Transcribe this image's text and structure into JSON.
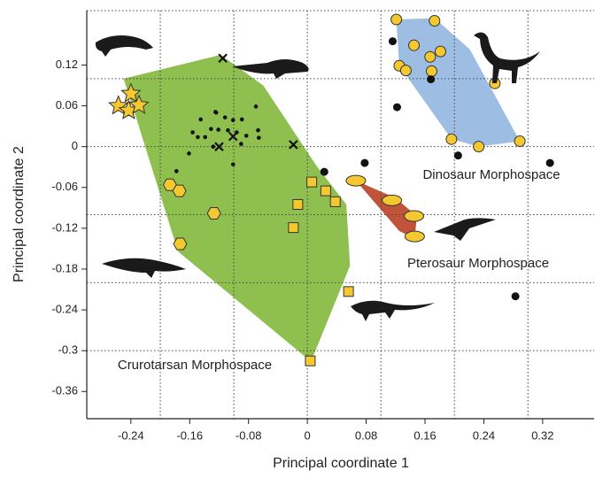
{
  "chart_data": {
    "type": "scatter",
    "xlabel": "Principal coordinate 1",
    "ylabel": "Principal coordinate 2",
    "xlim": [
      -0.3,
      0.39
    ],
    "ylim": [
      -0.4,
      0.2
    ],
    "xticks": [
      -0.24,
      -0.16,
      -0.08,
      0,
      0.08,
      0.16,
      0.24,
      0.32
    ],
    "yticks": [
      0.12,
      0.06,
      0,
      -0.06,
      -0.12,
      -0.18,
      -0.24,
      -0.3,
      -0.36
    ],
    "xgrid": [
      -0.2,
      -0.1,
      0,
      0.1,
      0.2,
      0.3
    ],
    "ygrid": [
      0.2,
      0.1,
      0,
      -0.1,
      -0.2,
      -0.3
    ],
    "regions": [
      {
        "label": "Crurotarsan Morphospace",
        "color": "#8fbf4f",
        "x": [
          -0.25,
          -0.118,
          -0.06,
          0.013,
          0.053,
          0.058,
          0.005,
          -0.176,
          -0.235
        ],
        "y": [
          0.1,
          0.135,
          0.09,
          -0.029,
          -0.085,
          -0.175,
          -0.316,
          -0.154,
          0.05
        ]
      },
      {
        "label": "Dinosaur Morphospace",
        "color": "#9dbde3",
        "x": [
          0.121,
          0.173,
          0.221,
          0.289,
          0.233,
          0.196,
          0.125
        ],
        "y": [
          0.187,
          0.189,
          0.143,
          0.008,
          0,
          0.011,
          0.119
        ]
      },
      {
        "label": "Pterosaur Morphospace",
        "color": "#c0543a",
        "x": [
          0.066,
          0.119,
          0.149,
          0.146,
          0.125
        ],
        "y": [
          -0.05,
          -0.075,
          -0.102,
          -0.135,
          -0.124
        ]
      }
    ],
    "series": [
      {
        "marker": "star",
        "color": "#f5c830",
        "x": [
          -0.24,
          -0.257,
          -0.243,
          -0.229
        ],
        "y": [
          0.078,
          0.06,
          0.053,
          0.061
        ]
      },
      {
        "marker": "hexagon",
        "color": "#f5c830",
        "x": [
          -0.187,
          -0.174,
          -0.127,
          -0.173
        ],
        "y": [
          -0.056,
          -0.065,
          -0.098,
          -0.143
        ]
      },
      {
        "marker": "square",
        "color": "#f5c830",
        "x": [
          0.006,
          0.025,
          0.038,
          -0.013,
          -0.019,
          0.056,
          0.004
        ],
        "y": [
          -0.052,
          -0.065,
          -0.081,
          -0.085,
          -0.119,
          -0.213,
          -0.315
        ]
      },
      {
        "marker": "ellipse",
        "color": "#f5c830",
        "x": [
          0.066,
          0.115,
          0.145,
          0.146
        ],
        "y": [
          -0.05,
          -0.079,
          -0.102,
          -0.132
        ]
      },
      {
        "marker": "circle",
        "color": "#f5c830",
        "x": [
          0.121,
          0.173,
          0.145,
          0.125,
          0.134,
          0.167,
          0.181,
          0.169,
          0.255,
          0.196,
          0.233,
          0.289
        ],
        "y": [
          0.187,
          0.185,
          0.149,
          0.119,
          0.112,
          0.132,
          0.14,
          0.111,
          0.093,
          0.011,
          0,
          0.008
        ]
      },
      {
        "marker": "dot",
        "color": "#111111",
        "x": [
          0.116,
          0.168,
          0.122,
          0.023,
          0.078,
          0.205,
          0.33,
          0.283
        ],
        "y": [
          0.155,
          0.099,
          0.058,
          -0.037,
          -0.024,
          -0.013,
          -0.024,
          -0.22
        ]
      },
      {
        "marker": "small-dot",
        "color": "#111111",
        "x": [
          -0.145,
          -0.124,
          -0.112,
          -0.101,
          -0.089,
          -0.07,
          -0.131,
          -0.149,
          -0.156,
          -0.139,
          -0.121,
          -0.108,
          -0.096,
          -0.083,
          -0.067,
          -0.066,
          -0.09,
          -0.128,
          -0.101,
          -0.161,
          -0.178,
          -0.125
        ],
        "y": [
          0.04,
          0.05,
          0.043,
          0.039,
          0.04,
          0.059,
          0.026,
          0.014,
          0.021,
          0.014,
          0.025,
          0.024,
          0.021,
          0.016,
          0.024,
          0.013,
          0.004,
          0,
          -0.026,
          -0.01,
          -0.036,
          0.051
        ]
      },
      {
        "marker": "cross",
        "color": "#111111",
        "x": [
          -0.115,
          -0.12,
          -0.101,
          -0.019
        ],
        "y": [
          0.13,
          0,
          0.015,
          0.003
        ]
      }
    ]
  }
}
